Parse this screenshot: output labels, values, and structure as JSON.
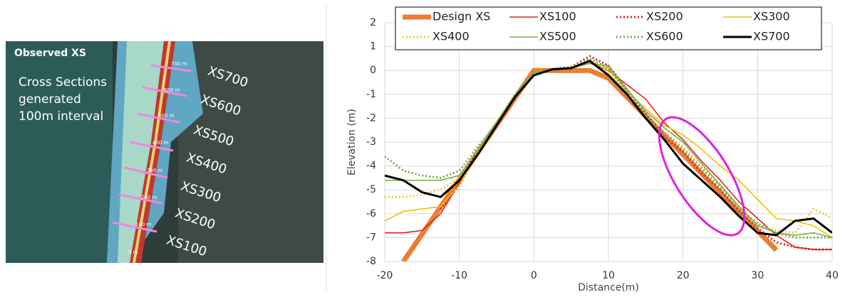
{
  "image": {
    "title": "Observed XS",
    "description": [
      "Cross Sections",
      "generated",
      "100m interval"
    ],
    "section_labels": [
      "XS700",
      "XS600",
      "XS500",
      "XS400",
      "XS300",
      "XS200",
      "XS100"
    ],
    "distance_labels": [
      "700 m",
      "600 m",
      "500 m",
      "400 m",
      "300 m",
      "200 m",
      "100 m",
      "0 m"
    ]
  },
  "chart_data": {
    "type": "line",
    "x_label": "Distance(m)",
    "y_label": "Elevation (m)",
    "x": [
      -20,
      -17.5,
      -15,
      -12.5,
      -10,
      -7.5,
      -5,
      -2.5,
      0,
      2.5,
      5,
      7.5,
      10,
      12.5,
      15,
      17.5,
      20,
      22.5,
      25,
      27.5,
      30,
      32.5,
      35,
      37.5,
      40
    ],
    "xlim": [
      -20,
      40
    ],
    "xticks": [
      -20,
      -10,
      0,
      10,
      20,
      30,
      40
    ],
    "ylim": [
      -8,
      2
    ],
    "yticks": [
      -8,
      -7,
      -6,
      -5,
      -4,
      -3,
      -2,
      -1,
      0,
      1,
      2
    ],
    "grid": true,
    "series": [
      {
        "name": "Design XS",
        "color": "#ed7d31",
        "style": "thick",
        "values": [
          null,
          -8,
          -6.86,
          -5.71,
          -4.57,
          -3.43,
          -2.29,
          -1.14,
          0,
          0,
          0,
          0,
          -0.32,
          -1.12,
          -1.92,
          -2.72,
          -3.52,
          -4.32,
          -5.12,
          -5.92,
          -6.72,
          -7.52,
          null,
          null,
          null
        ]
      },
      {
        "name": "XS100",
        "color": "#e02020",
        "style": "solid",
        "values": [
          -6.8,
          -6.8,
          -6.7,
          -6.0,
          -4.7,
          -3.3,
          -2.2,
          -1.0,
          -0.1,
          0.05,
          0.1,
          0.3,
          0,
          -0.6,
          -1.2,
          -2.2,
          -2.9,
          -3.8,
          -4.6,
          -5.5,
          -6.2,
          -6.9,
          -7.4,
          -7.5,
          -7.5
        ]
      },
      {
        "name": "XS200",
        "color": "#e02020",
        "style": "dotted",
        "values": [
          null,
          null,
          null,
          -5.8,
          -4.8,
          -3.4,
          -2.3,
          -1.1,
          -0.1,
          0.05,
          0.15,
          0.6,
          0.2,
          -0.8,
          -1.8,
          -2.8,
          -3.4,
          -4.3,
          -5.0,
          -5.9,
          -6.6,
          -7.2,
          -7.4,
          -7.5,
          -7.5
        ]
      },
      {
        "name": "XS300",
        "color": "#f0c000",
        "style": "solid",
        "values": [
          -6.3,
          -5.9,
          -5.8,
          -5.7,
          -4.8,
          -3.4,
          -2.2,
          -1.0,
          -0.1,
          0.05,
          0.1,
          0.3,
          0.1,
          -0.9,
          -1.6,
          -2.3,
          -2.7,
          -3.3,
          -4.0,
          -4.6,
          -5.4,
          -6.2,
          -6.3,
          -6.5,
          -7.0
        ]
      },
      {
        "name": "XS400",
        "color": "#f5c842",
        "style": "dotted",
        "values": [
          -5.3,
          -5.3,
          -5.2,
          -5.0,
          -4.5,
          -3.3,
          -2.2,
          -1.0,
          -0.1,
          0.05,
          0.15,
          0.4,
          0,
          -1.0,
          -1.9,
          -2.6,
          -3.2,
          -4.0,
          -4.8,
          -5.7,
          -6.5,
          -6.7,
          -6.8,
          -5.8,
          -6.2
        ]
      },
      {
        "name": "XS500",
        "color": "#70ad47",
        "style": "solid",
        "values": [
          -4.6,
          -4.6,
          -4.6,
          -4.6,
          -4.4,
          -3.3,
          -2.2,
          -1.0,
          -0.1,
          0.05,
          0.1,
          0.3,
          0.2,
          -0.8,
          -1.7,
          -2.4,
          -3.0,
          -3.9,
          -4.8,
          -5.7,
          -6.5,
          -6.8,
          -6.9,
          -6.8,
          -7.0
        ]
      },
      {
        "name": "XS600",
        "color": "#70ad47",
        "style": "dotted",
        "values": [
          -3.6,
          -4.2,
          -4.4,
          -4.5,
          -4.2,
          -3.2,
          -2.2,
          -1.0,
          -0.1,
          0.05,
          0.15,
          0.5,
          0.1,
          -0.9,
          -1.9,
          -2.6,
          -3.3,
          -4.1,
          -4.9,
          -5.8,
          -6.4,
          -6.8,
          -7.0,
          -7.0,
          -7.0
        ]
      },
      {
        "name": "XS700",
        "color": "#000000",
        "style": "bold",
        "values": [
          -4.4,
          -4.6,
          -5.1,
          -5.3,
          -4.6,
          -3.5,
          -2.3,
          -1.1,
          -0.2,
          0.05,
          0.1,
          0.4,
          -0.2,
          -1.0,
          -2.0,
          -2.9,
          -3.9,
          -4.6,
          -5.3,
          -6.1,
          -6.8,
          -6.9,
          -6.3,
          -6.2,
          -6.8
        ]
      }
    ]
  }
}
